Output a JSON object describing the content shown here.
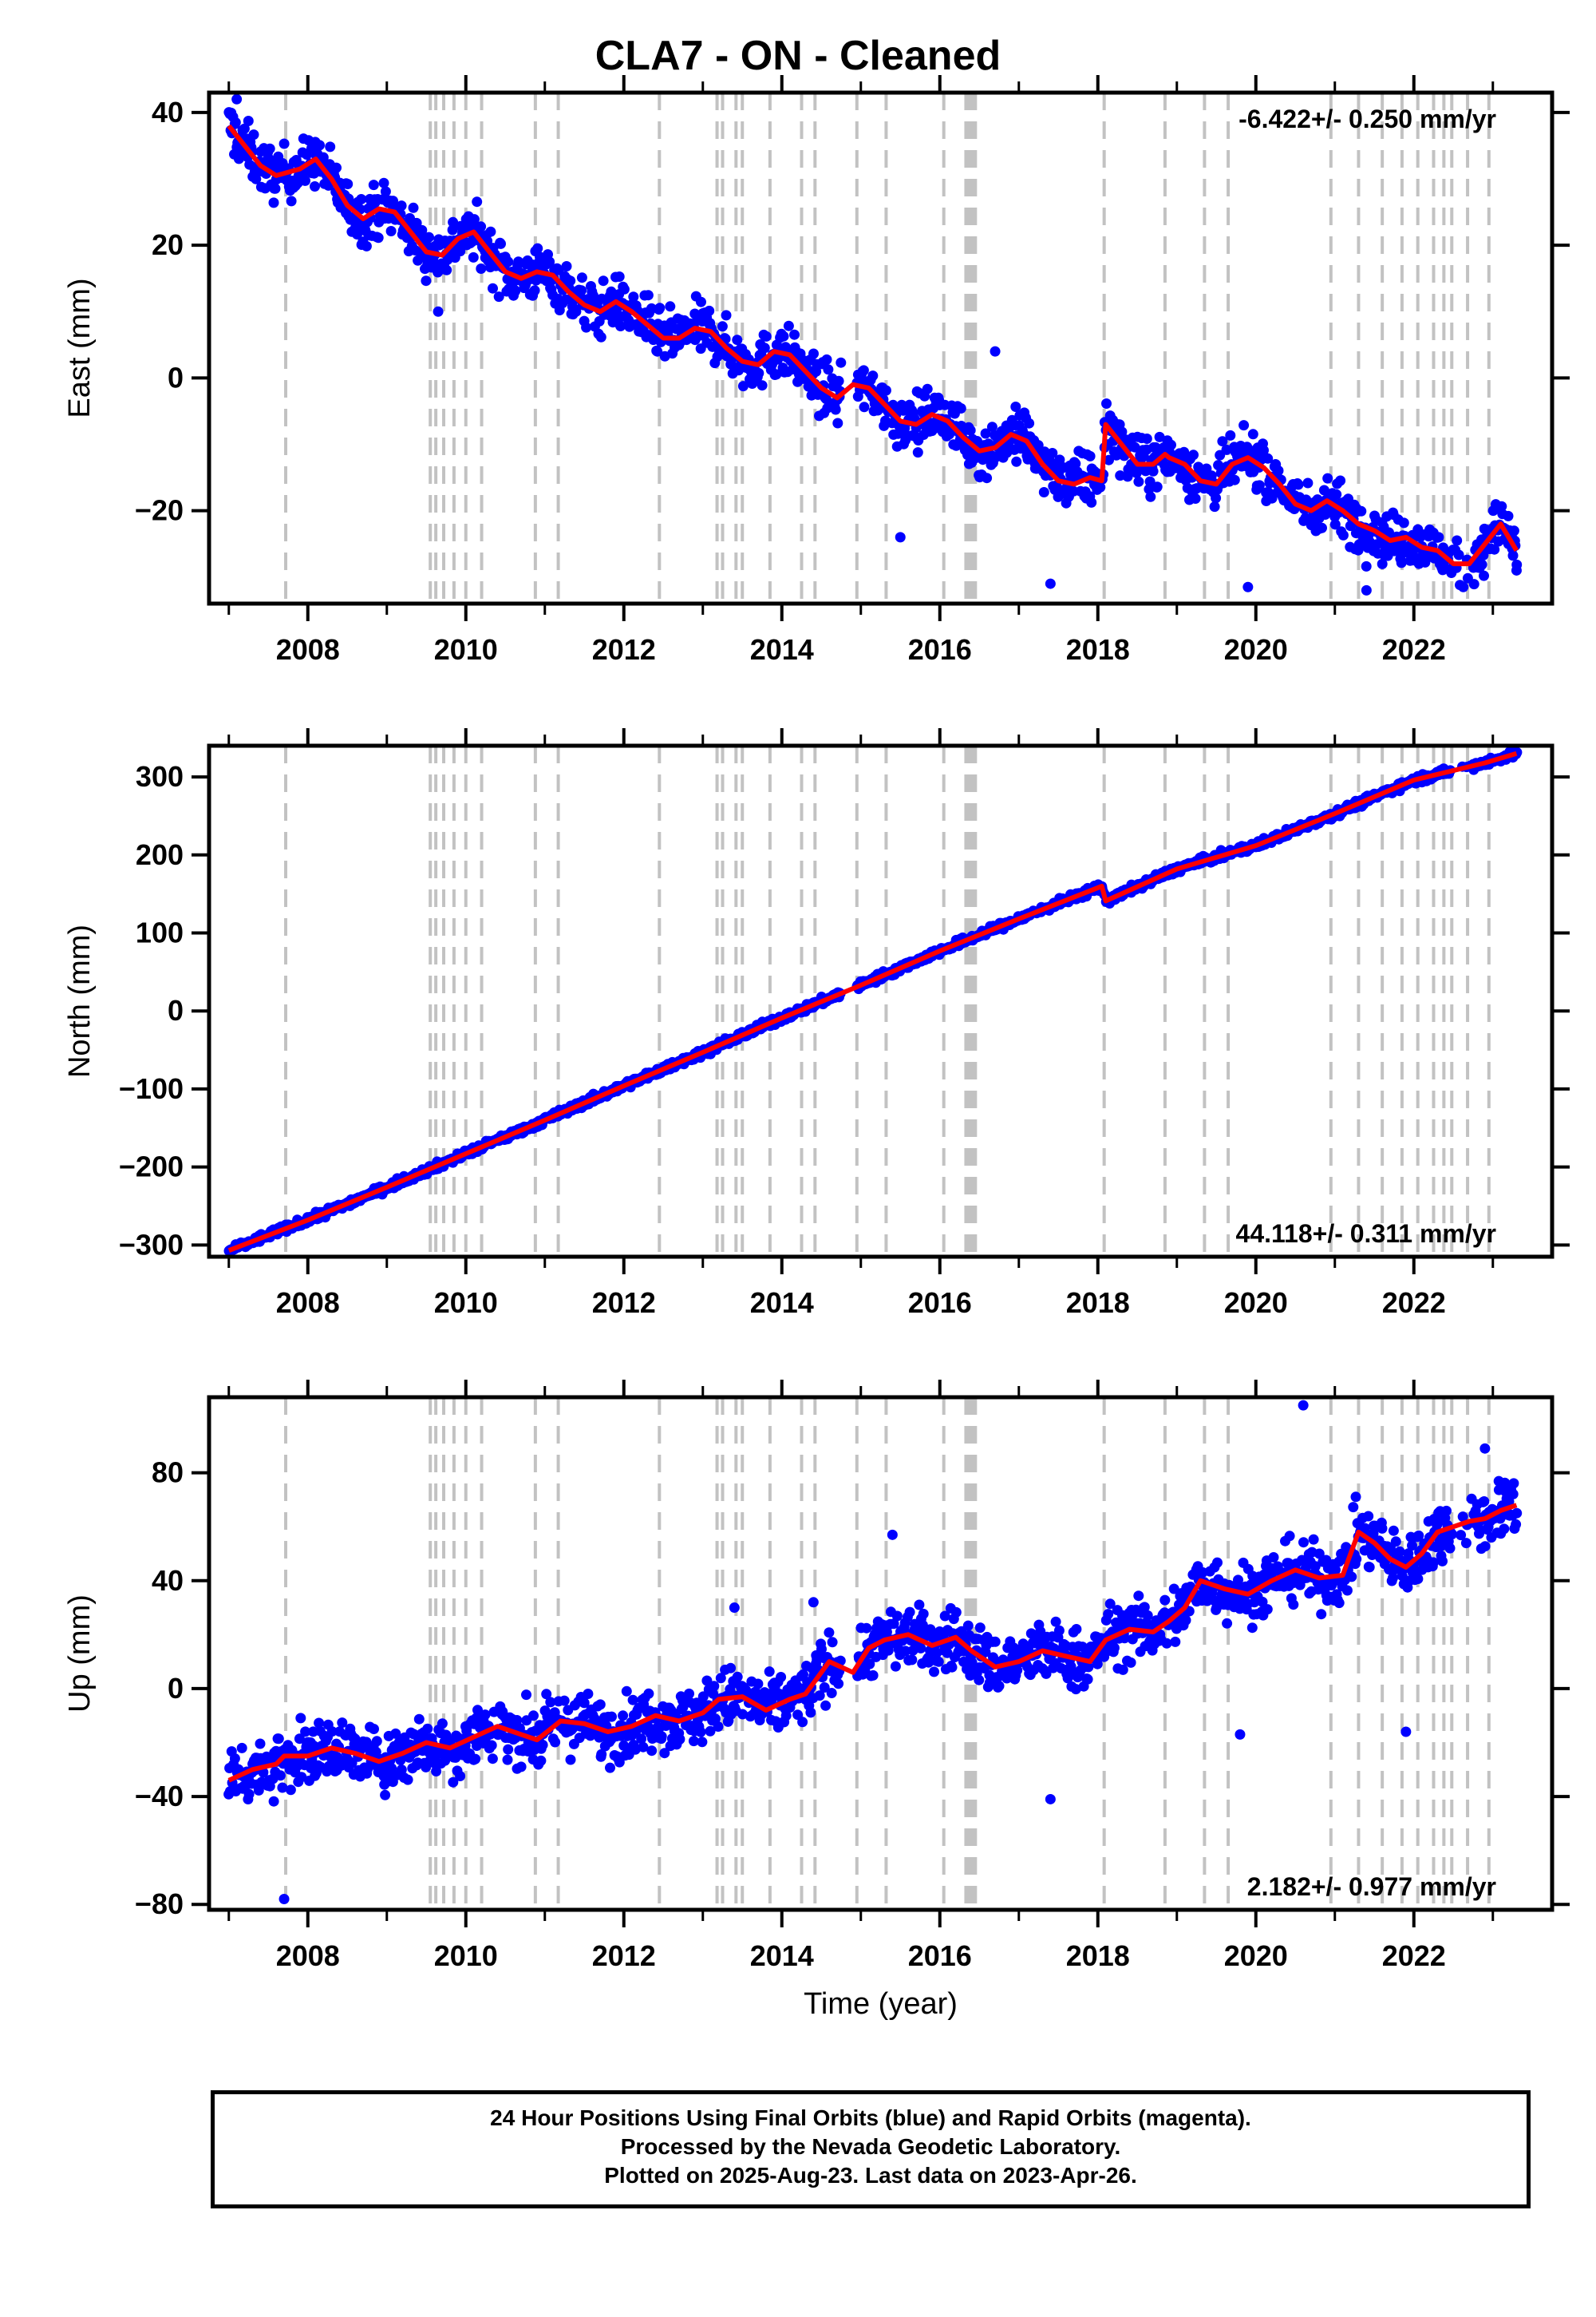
{
  "title": "CLA7  - ON - Cleaned",
  "chart_data": [
    {
      "type": "scatter",
      "component": "East",
      "ylabel": "East (mm)",
      "xlim": [
        2006.75,
        2023.75
      ],
      "ylim": [
        -34,
        43
      ],
      "yticks": [
        -20,
        0,
        20,
        40
      ],
      "xticks": [
        2008,
        2010,
        2012,
        2014,
        2016,
        2018,
        2020,
        2022
      ],
      "rate_label": "-6.422+/- 0.250 mm/yr",
      "rate_position": "top-right",
      "grid": false,
      "point_color": "#0000ff",
      "fit_color": "#ff0000",
      "trend": {
        "slope": -6.422,
        "intercept_at_2015": -3.5
      },
      "scatter_noise": 2.8,
      "model": {
        "x": [
          2007.0,
          2007.2,
          2007.4,
          2007.6,
          2007.9,
          2008.1,
          2008.3,
          2008.5,
          2008.7,
          2008.9,
          2009.1,
          2009.3,
          2009.5,
          2009.7,
          2009.9,
          2010.1,
          2010.3,
          2010.5,
          2010.7,
          2010.9,
          2011.1,
          2011.3,
          2011.5,
          2011.7,
          2011.9,
          2012.1,
          2012.3,
          2012.5,
          2012.7,
          2012.9,
          2013.1,
          2013.3,
          2013.5,
          2013.7,
          2013.9,
          2014.1,
          2014.3,
          2014.5,
          2014.7,
          2014.9,
          2015.1,
          2015.3,
          2015.5,
          2015.7,
          2015.9,
          2016.1,
          2016.3,
          2016.5,
          2016.7,
          2016.9,
          2017.1,
          2017.3,
          2017.5,
          2017.7,
          2017.9,
          2018.05,
          2018.1,
          2018.3,
          2018.5,
          2018.7,
          2018.85,
          2018.9,
          2019.1,
          2019.3,
          2019.5,
          2019.7,
          2019.9,
          2020.1,
          2020.3,
          2020.5,
          2020.7,
          2020.9,
          2021.1,
          2021.3,
          2021.5,
          2021.7,
          2021.9,
          2022.1,
          2022.3,
          2022.5,
          2022.7,
          2022.9,
          2023.1,
          2023.3
        ],
        "y": [
          38,
          35,
          32,
          30.5,
          31.5,
          33,
          30,
          26,
          24,
          25.5,
          25,
          22,
          19,
          18.5,
          21,
          22,
          19,
          16,
          15,
          16,
          15.5,
          13,
          11,
          10,
          11.5,
          10,
          8,
          6,
          6,
          7.5,
          7,
          4.5,
          2.5,
          2,
          4,
          3.5,
          1,
          -1.5,
          -3,
          -1,
          -1.5,
          -4,
          -6.5,
          -7,
          -5.5,
          -6.5,
          -9,
          -11,
          -10.5,
          -8.5,
          -9.5,
          -13,
          -15.5,
          -16,
          -15,
          -15.5,
          -7,
          -10,
          -13,
          -13,
          -11.5,
          -12,
          -13,
          -15.5,
          -16,
          -13,
          -12,
          -13.5,
          -16,
          -19,
          -20,
          -18.5,
          -20,
          -22,
          -23,
          -24.5,
          -24,
          -25.5,
          -26,
          -28,
          -28,
          -25,
          -22,
          -26
        ]
      },
      "outliers": [
        {
          "x": 2007.1,
          "y": 42
        },
        {
          "x": 2009.65,
          "y": 10
        },
        {
          "x": 2015.5,
          "y": -24
        },
        {
          "x": 2017.4,
          "y": -31
        },
        {
          "x": 2019.9,
          "y": -31.5
        },
        {
          "x": 2021.4,
          "y": -32
        },
        {
          "x": 2023.3,
          "y": -29
        },
        {
          "x": 2016.7,
          "y": 4
        },
        {
          "x": 2012.05,
          "y": 10
        }
      ]
    },
    {
      "type": "scatter",
      "component": "North",
      "ylabel": "North (mm)",
      "xlim": [
        2006.75,
        2023.75
      ],
      "ylim": [
        -315,
        340
      ],
      "yticks": [
        -300,
        -200,
        -100,
        0,
        100,
        200,
        300
      ],
      "xticks": [
        2008,
        2010,
        2012,
        2014,
        2016,
        2018,
        2020,
        2022
      ],
      "rate_label": "44.118+/- 0.311 mm/yr",
      "rate_position": "bottom-right",
      "grid": false,
      "point_color": "#0000ff",
      "fit_color": "#ff0000",
      "trend": {
        "slope": 44.118,
        "intercept_at_2015": 25
      },
      "scatter_noise": 3.5,
      "model": {
        "x": [
          2007.0,
          2008.0,
          2009.0,
          2010.0,
          2011.0,
          2012.0,
          2013.0,
          2014.0,
          2015.0,
          2016.0,
          2017.0,
          2018.05,
          2018.1,
          2019.0,
          2020.0,
          2021.0,
          2022.0,
          2022.9,
          2023.3
        ],
        "y": [
          -307,
          -268,
          -226,
          -183,
          -140,
          -96,
          -53,
          -9,
          33,
          77,
          118,
          160,
          141,
          182,
          212,
          253,
          296,
          318,
          330
        ]
      },
      "outliers": []
    },
    {
      "type": "scatter",
      "component": "Up",
      "ylabel": "Up (mm)",
      "xlabel": "Time (year)",
      "xlim": [
        2006.75,
        2023.75
      ],
      "ylim": [
        -82,
        108
      ],
      "yticks": [
        -80,
        -40,
        0,
        40,
        80
      ],
      "xticks": [
        2008,
        2010,
        2012,
        2014,
        2016,
        2018,
        2020,
        2022
      ],
      "rate_label": "2.182+/- 0.977 mm/yr",
      "rate_position": "bottom-right",
      "grid": false,
      "point_color": "#0000ff",
      "fit_color": "#ff0000",
      "trend": {
        "slope": 2.182,
        "intercept_at_2015": 5
      },
      "scatter_noise": 8,
      "model": {
        "x": [
          2007.0,
          2007.3,
          2007.6,
          2007.7,
          2008.0,
          2008.3,
          2008.6,
          2008.9,
          2009.2,
          2009.5,
          2009.8,
          2010.1,
          2010.4,
          2010.7,
          2010.9,
          2011.2,
          2011.5,
          2011.8,
          2012.1,
          2012.4,
          2012.7,
          2013.0,
          2013.2,
          2013.5,
          2013.8,
          2014.1,
          2014.3,
          2014.6,
          2014.9,
          2015.1,
          2015.3,
          2015.6,
          2015.9,
          2016.2,
          2016.4,
          2016.7,
          2017.0,
          2017.3,
          2017.6,
          2017.9,
          2018.1,
          2018.4,
          2018.7,
          2018.9,
          2019.1,
          2019.3,
          2019.6,
          2019.9,
          2020.2,
          2020.5,
          2020.8,
          2021.1,
          2021.3,
          2021.5,
          2021.7,
          2021.9,
          2022.1,
          2022.3,
          2022.5,
          2022.7,
          2022.9,
          2023.1,
          2023.3
        ],
        "y": [
          -34,
          -30,
          -28,
          -25,
          -25,
          -22,
          -24,
          -27,
          -24,
          -20,
          -22,
          -18,
          -14,
          -17,
          -19,
          -12,
          -13,
          -16,
          -14,
          -10,
          -12,
          -9,
          -4,
          -3,
          -8,
          -4,
          -2,
          10,
          6,
          15,
          18,
          20,
          16,
          19,
          14,
          8,
          10,
          14,
          12,
          10,
          18,
          22,
          21,
          25,
          30,
          40,
          37,
          35,
          40,
          44,
          41,
          42,
          58,
          54,
          48,
          45,
          50,
          58,
          60,
          62,
          63,
          66,
          68
        ]
      },
      "outliers": [
        {
          "x": 2007.7,
          "y": -78
        },
        {
          "x": 2020.6,
          "y": 105
        },
        {
          "x": 2021.9,
          "y": -16
        },
        {
          "x": 2017.4,
          "y": -41
        },
        {
          "x": 2019.8,
          "y": -17
        },
        {
          "x": 2022.9,
          "y": 89
        },
        {
          "x": 2015.4,
          "y": 57
        },
        {
          "x": 2014.4,
          "y": 32
        },
        {
          "x": 2013.4,
          "y": 30
        }
      ]
    }
  ],
  "footer": {
    "line1": "24 Hour Positions Using Final Orbits (blue) and Rapid Orbits (magenta).",
    "line2": "Processed by the Nevada Geodetic Laboratory.",
    "line3": "Plotted on 2025-Aug-23. Last data on 2023-Apr-26."
  },
  "equipment_changes": [
    2007.72,
    2009.55,
    2009.62,
    2009.72,
    2009.85,
    2010.0,
    2010.2,
    2010.88,
    2011.17,
    2012.45,
    2013.18,
    2013.25,
    2013.42,
    2013.5,
    2013.85,
    2014.25,
    2014.42,
    2014.95,
    2015.32,
    2016.05,
    2016.33,
    2016.36,
    2016.39,
    2016.42,
    2016.45,
    2018.08,
    2018.85,
    2019.35,
    2019.65,
    2020.95,
    2021.3,
    2021.6,
    2021.85,
    2022.05,
    2022.25,
    2022.38,
    2022.48,
    2022.68,
    2022.95
  ]
}
